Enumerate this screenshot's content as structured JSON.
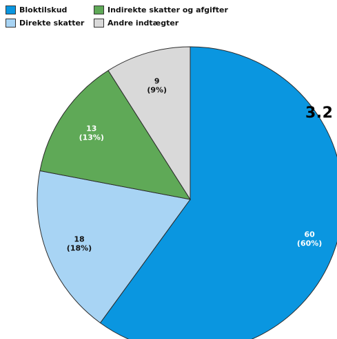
{
  "chart_data": {
    "type": "pie",
    "title": "",
    "corner_label": "3.2",
    "slices": [
      {
        "name": "Bloktilskud",
        "value": 60,
        "percent_label": "(60%)",
        "color": "#0a96e0",
        "text_color": "#ffffff"
      },
      {
        "name": "Direkte skatter",
        "value": 18,
        "percent_label": "(18%)",
        "color": "#a8d4f4",
        "text_color": "#111111"
      },
      {
        "name": "Indirekte skatter og afgifter",
        "value": 13,
        "percent_label": "(13%)",
        "color": "#5fa957",
        "text_color": "#ffffff"
      },
      {
        "name": "Andre indtægter",
        "value": 9,
        "percent_label": "(9%)",
        "color": "#d9d9d9",
        "text_color": "#111111"
      }
    ],
    "start_angle_deg": 0,
    "direction": "clockwise",
    "legend_placement": "top-left"
  }
}
